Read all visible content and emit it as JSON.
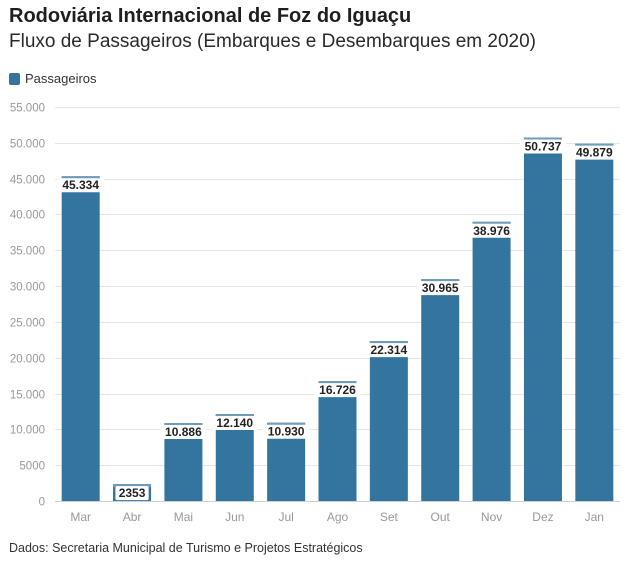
{
  "header": {
    "title": "Rodoviária Internacional de Foz do Iguaçu",
    "subtitle": "Fluxo de Passageiros (Embarques e Desembarques em 2020)"
  },
  "legend": {
    "label": "Passageiros",
    "color": "#33759f"
  },
  "footer": {
    "source": "Dados: Secretaria Municipal de Turismo e Projetos Estratégicos"
  },
  "chart_data": {
    "type": "bar",
    "title": "Rodoviária Internacional de Foz do Iguaçu",
    "subtitle": "Fluxo de Passageiros (Embarques e Desembarques em 2020)",
    "xlabel": "",
    "ylabel": "",
    "ylim": [
      0,
      55000
    ],
    "grid": true,
    "legend_position": "top-left",
    "categories": [
      "Mar",
      "Abr",
      "Mai",
      "Jun",
      "Jul",
      "Ago",
      "Set",
      "Out",
      "Nov",
      "Dez",
      "Jan"
    ],
    "series": [
      {
        "name": "Passageiros",
        "color": "#33759f",
        "values": [
          45334,
          2353,
          10886,
          12140,
          10930,
          16726,
          22314,
          30965,
          38976,
          50737,
          49879
        ],
        "value_labels": [
          "45.334",
          "2353",
          "10.886",
          "12.140",
          "10.930",
          "16.726",
          "22.314",
          "30.965",
          "38.976",
          "50.737",
          "49.879"
        ]
      }
    ],
    "yticks": [
      0,
      5000,
      10000,
      15000,
      20000,
      25000,
      30000,
      35000,
      40000,
      45000,
      50000,
      55000
    ],
    "ytick_labels": [
      "0",
      "5000",
      "10.000",
      "15.000",
      "20.000",
      "25.000",
      "30.000",
      "35.000",
      "40.000",
      "45.000",
      "50.000",
      "55.000"
    ]
  }
}
